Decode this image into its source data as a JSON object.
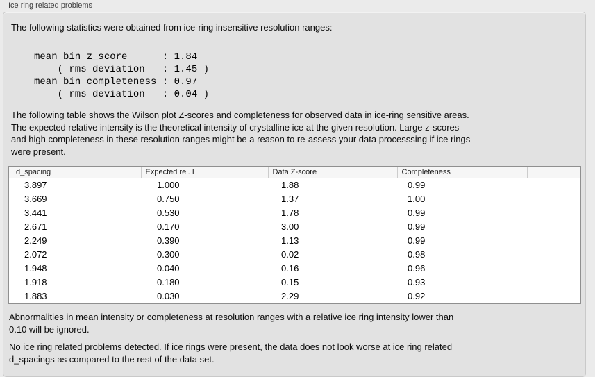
{
  "colors": {
    "window-bg": "#ebebeb",
    "panel-bg": "#e2e2e2",
    "panel-border": "#c9c9c9",
    "table-border": "#8f8f8f",
    "table-header-bg": "#f6f6f6",
    "table-body-bg": "#ffffff",
    "text": "#0d0d0d",
    "title-text": "#3e3e3e"
  },
  "section": {
    "title": "Ice ring related problems"
  },
  "content": {
    "intro": "The following statistics were obtained from ice-ring insensitive resolution ranges:",
    "stats_block": "mean bin z_score      : 1.84\n    ( rms deviation   : 1.45 )\nmean bin completeness : 0.97\n    ( rms deviation   : 0.04 )",
    "stats": {
      "mean_bin_z_score": "1.84",
      "z_score_rms_deviation": "1.45",
      "mean_bin_completeness": "0.97",
      "completeness_rms_deviation": "0.04"
    },
    "table_description_lines": [
      "The following table shows the Wilson plot Z-scores and completeness for observed data in ice-ring sensitive areas.",
      "The expected relative intensity is the theoretical intensity of crystalline ice at the given resolution. Large z-scores",
      "and high completeness in these resolution ranges might be a reason to re-assess your data processsing if ice rings",
      "were present."
    ],
    "ignore_note_lines": [
      "Abnormalities in mean intensity or completeness at resolution ranges with a relative ice ring intensity lower than",
      "0.10 will be ignored."
    ],
    "conclusion_lines": [
      "No ice ring related problems detected. If ice rings were present, the data does not look worse at ice ring related",
      "d_spacings as compared to the rest of the data set."
    ]
  },
  "table": {
    "columns": [
      "d_spacing",
      "Expected rel. I",
      "Data Z-score",
      "Completeness",
      ""
    ],
    "rows": [
      [
        "3.897",
        "1.000",
        "1.88",
        "0.99"
      ],
      [
        "3.669",
        "0.750",
        "1.37",
        "1.00"
      ],
      [
        "3.441",
        "0.530",
        "1.78",
        "0.99"
      ],
      [
        "2.671",
        "0.170",
        "3.00",
        "0.99"
      ],
      [
        "2.249",
        "0.390",
        "1.13",
        "0.99"
      ],
      [
        "2.072",
        "0.300",
        "0.02",
        "0.98"
      ],
      [
        "1.948",
        "0.040",
        "0.16",
        "0.96"
      ],
      [
        "1.918",
        "0.180",
        "0.15",
        "0.93"
      ],
      [
        "1.883",
        "0.030",
        "2.29",
        "0.92"
      ]
    ]
  }
}
